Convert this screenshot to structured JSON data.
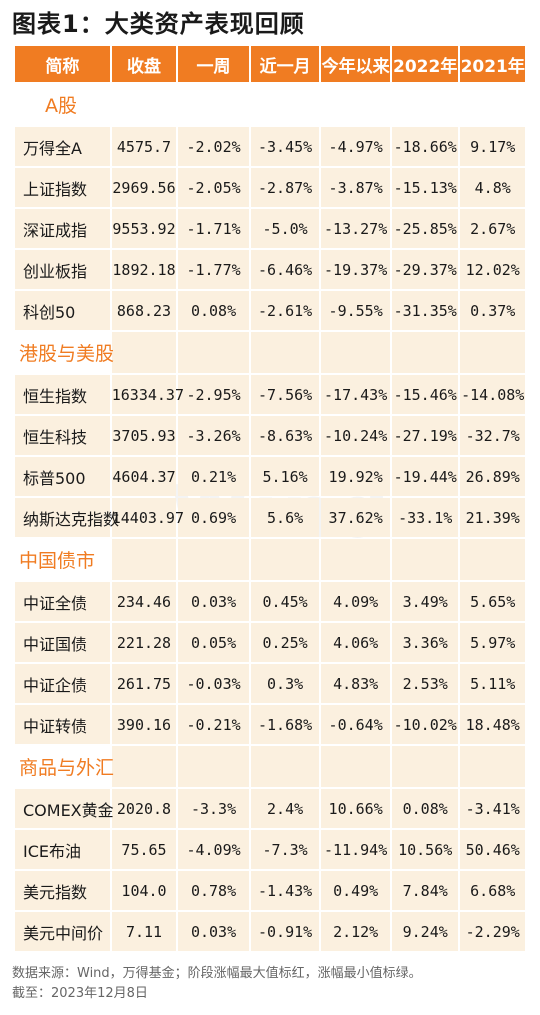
{
  "title": "图表1：大类资产表现回顾",
  "columns": [
    "简称",
    "收盘",
    "一周",
    "近一月",
    "今年以来",
    "2022年",
    "2021年"
  ],
  "sections": [
    {
      "name": "A股",
      "rows": [
        {
          "name": "万得全A",
          "values": [
            "4575.7",
            "-2.02%",
            "-3.45%",
            "-4.97%",
            "-18.66%",
            "9.17%"
          ],
          "highlight": [
            "",
            "",
            "",
            "",
            "",
            ""
          ]
        },
        {
          "name": "上证指数",
          "values": [
            "2969.56",
            "-2.05%",
            "-2.87%",
            "-3.87%",
            "-15.13%",
            "4.8%"
          ],
          "highlight": [
            "",
            "",
            "",
            "",
            "",
            ""
          ]
        },
        {
          "name": "深证成指",
          "values": [
            "9553.92",
            "-1.71%",
            "-5.0%",
            "-13.27%",
            "-25.85%",
            "2.67%"
          ],
          "highlight": [
            "",
            "",
            "",
            "",
            "",
            ""
          ]
        },
        {
          "name": "创业板指",
          "values": [
            "1892.18",
            "-1.77%",
            "-6.46%",
            "-19.37%",
            "-29.37%",
            "12.02%"
          ],
          "highlight": [
            "",
            "",
            "",
            "lo",
            "",
            ""
          ]
        },
        {
          "name": "科创50",
          "values": [
            "868.23",
            "0.08%",
            "-2.61%",
            "-9.55%",
            "-31.35%",
            "0.37%"
          ],
          "highlight": [
            "",
            "",
            "",
            "",
            "",
            ""
          ]
        }
      ]
    },
    {
      "name": "港股与美股",
      "rows": [
        {
          "name": "恒生指数",
          "values": [
            "16334.37",
            "-2.95%",
            "-7.56%",
            "-17.43%",
            "-15.46%",
            "-14.08%"
          ],
          "highlight": [
            "",
            "",
            "",
            "",
            "",
            ""
          ]
        },
        {
          "name": "恒生科技",
          "values": [
            "3705.93",
            "-3.26%",
            "-8.63%",
            "-10.24%",
            "-27.19%",
            "-32.7%"
          ],
          "highlight": [
            "",
            "",
            "lo",
            "",
            "",
            "lo"
          ]
        },
        {
          "name": "标普500",
          "values": [
            "4604.37",
            "0.21%",
            "5.16%",
            "19.92%",
            "-19.44%",
            "26.89%"
          ],
          "highlight": [
            "",
            "",
            "",
            "",
            "",
            ""
          ]
        },
        {
          "name": "纳斯达克指数",
          "values": [
            "14403.97",
            "0.69%",
            "5.6%",
            "37.62%",
            "-33.1%",
            "21.39%"
          ],
          "highlight": [
            "",
            "",
            "hi",
            "hi",
            "lo",
            ""
          ]
        }
      ]
    },
    {
      "name": "中国债市",
      "rows": [
        {
          "name": "中证全债",
          "values": [
            "234.46",
            "0.03%",
            "0.45%",
            "4.09%",
            "3.49%",
            "5.65%"
          ],
          "highlight": [
            "",
            "",
            "",
            "",
            "",
            ""
          ]
        },
        {
          "name": "中证国债",
          "values": [
            "221.28",
            "0.05%",
            "0.25%",
            "4.06%",
            "3.36%",
            "5.97%"
          ],
          "highlight": [
            "",
            "",
            "",
            "",
            "",
            ""
          ]
        },
        {
          "name": "中证企债",
          "values": [
            "261.75",
            "-0.03%",
            "0.3%",
            "4.83%",
            "2.53%",
            "5.11%"
          ],
          "highlight": [
            "",
            "",
            "",
            "",
            "",
            ""
          ]
        },
        {
          "name": "中证转债",
          "values": [
            "390.16",
            "-0.21%",
            "-1.68%",
            "-0.64%",
            "-10.02%",
            "18.48%"
          ],
          "highlight": [
            "",
            "",
            "",
            "",
            "",
            ""
          ]
        }
      ]
    },
    {
      "name": "商品与外汇",
      "rows": [
        {
          "name": "COMEX黄金",
          "values": [
            "2020.8",
            "-3.3%",
            "2.4%",
            "10.66%",
            "0.08%",
            "-3.41%"
          ],
          "highlight": [
            "",
            "",
            "",
            "",
            "",
            ""
          ]
        },
        {
          "name": "ICE布油",
          "values": [
            "75.65",
            "-4.09%",
            "-7.3%",
            "-11.94%",
            "10.56%",
            "50.46%"
          ],
          "highlight": [
            "",
            "lo",
            "",
            "",
            "hi",
            "hi"
          ]
        },
        {
          "name": "美元指数",
          "values": [
            "104.0",
            "0.78%",
            "-1.43%",
            "0.49%",
            "7.84%",
            "6.68%"
          ],
          "highlight": [
            "",
            "hi",
            "",
            "",
            "",
            ""
          ]
        },
        {
          "name": "美元中间价",
          "values": [
            "7.11",
            "0.03%",
            "-0.91%",
            "2.12%",
            "9.24%",
            "-2.29%"
          ],
          "highlight": [
            "",
            "",
            "",
            "",
            "",
            ""
          ]
        }
      ]
    }
  ],
  "watermark": "Wind",
  "footnote_1": "数据来源：Wind，万得基金；阶段涨幅最大值标红，涨幅最小值标绿。",
  "footnote_2": "截至：2023年12月8日",
  "colors": {
    "header_bg": "#f07c22",
    "cell_bg": "#fbf0df",
    "max_red": "#e51d1d",
    "min_green": "#1a9a1a"
  }
}
